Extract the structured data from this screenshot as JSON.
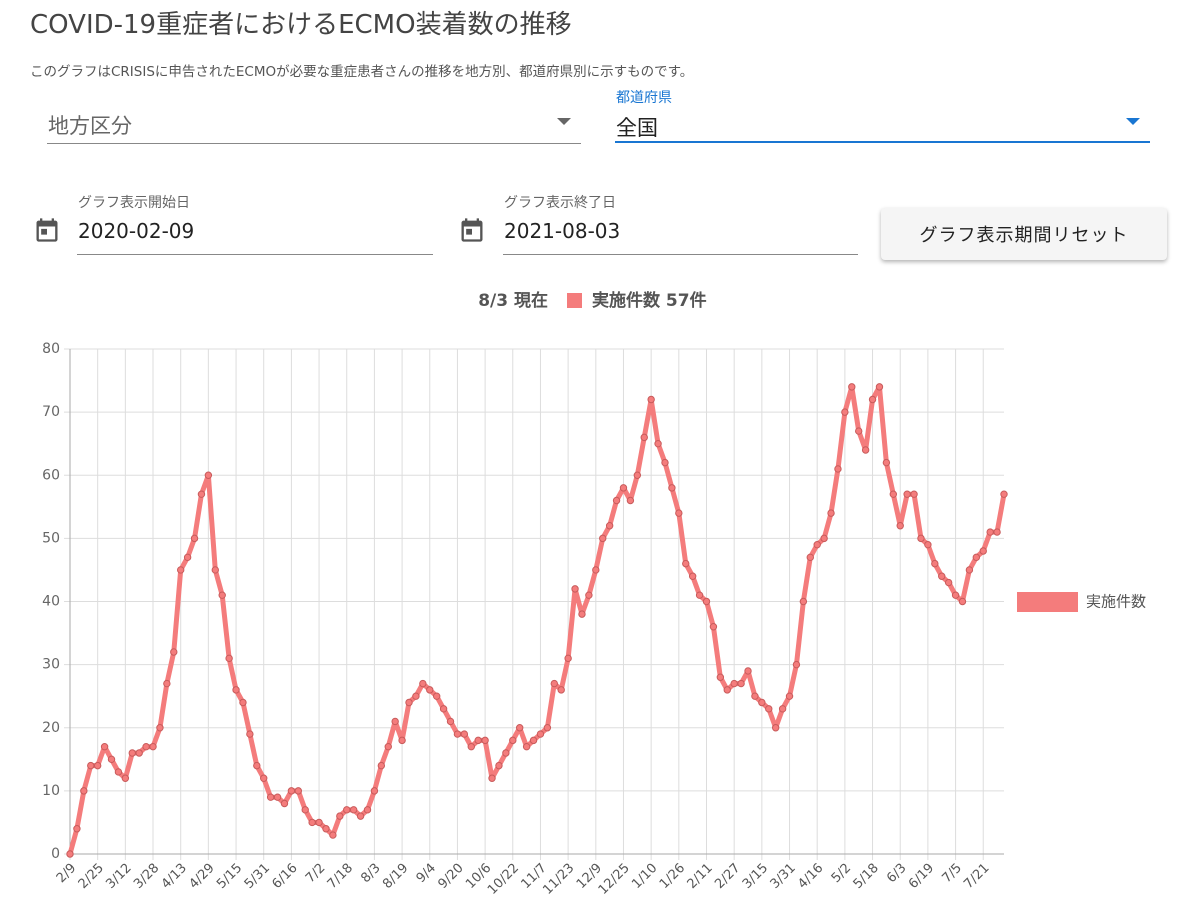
{
  "header": {
    "title": "COVID-19重症者におけるECMO装着数の推移",
    "description": "このグラフはCRISISに申告されたECMOが必要な重症患者さんの推移を地方別、都道府県別に示すものです。"
  },
  "filters": {
    "region": {
      "placeholder": "地方区分"
    },
    "prefecture": {
      "label": "都道府県",
      "value": "全国"
    }
  },
  "period": {
    "start": {
      "label": "グラフ表示開始日",
      "value": "2020-02-09"
    },
    "end": {
      "label": "グラフ表示終了日",
      "value": "2021-08-03"
    },
    "reset_button": "グラフ表示期間リセット"
  },
  "chart_data": {
    "type": "line",
    "summary": {
      "date": "8/3 現在",
      "label": "実施件数 57件"
    },
    "tick_labels": [
      "2/9",
      "2/25",
      "3/12",
      "3/28",
      "4/13",
      "4/29",
      "5/15",
      "5/31",
      "6/16",
      "7/2",
      "7/18",
      "8/3",
      "8/19",
      "9/4",
      "9/20",
      "10/6",
      "10/22",
      "11/7",
      "11/23",
      "12/9",
      "12/25",
      "1/10",
      "1/26",
      "2/11",
      "2/27",
      "3/15",
      "3/31",
      "4/16",
      "5/2",
      "5/18",
      "6/3",
      "6/19",
      "7/5",
      "7/21"
    ],
    "series": [
      {
        "name": "実施件数",
        "color": "#f47c7c",
        "values": [
          0,
          4,
          10,
          14,
          14,
          17,
          15,
          13,
          12,
          16,
          16,
          17,
          17,
          20,
          27,
          32,
          45,
          47,
          50,
          57,
          60,
          45,
          41,
          31,
          26,
          24,
          19,
          14,
          12,
          9,
          9,
          8,
          10,
          10,
          7,
          5,
          5,
          4,
          3,
          6,
          7,
          7,
          6,
          7,
          10,
          14,
          17,
          21,
          18,
          24,
          25,
          27,
          26,
          25,
          23,
          21,
          19,
          19,
          17,
          18,
          18,
          12,
          14,
          16,
          18,
          20,
          17,
          18,
          19,
          20,
          27,
          26,
          31,
          42,
          38,
          41,
          45,
          50,
          52,
          56,
          58,
          56,
          60,
          66,
          72,
          65,
          62,
          58,
          54,
          46,
          44,
          41,
          40,
          36,
          28,
          26,
          27,
          27,
          29,
          25,
          24,
          23,
          20,
          23,
          25,
          30,
          40,
          47,
          49,
          50,
          54,
          61,
          70,
          74,
          67,
          64,
          72,
          74,
          62,
          57,
          52,
          57,
          57,
          50,
          49,
          46,
          44,
          43,
          41,
          40,
          45,
          47,
          48,
          51,
          51,
          57
        ]
      }
    ],
    "ylim": [
      0,
      80
    ],
    "yticks": [
      0,
      10,
      20,
      30,
      40,
      50,
      60,
      70,
      80
    ],
    "grid": true,
    "legend": "right"
  }
}
